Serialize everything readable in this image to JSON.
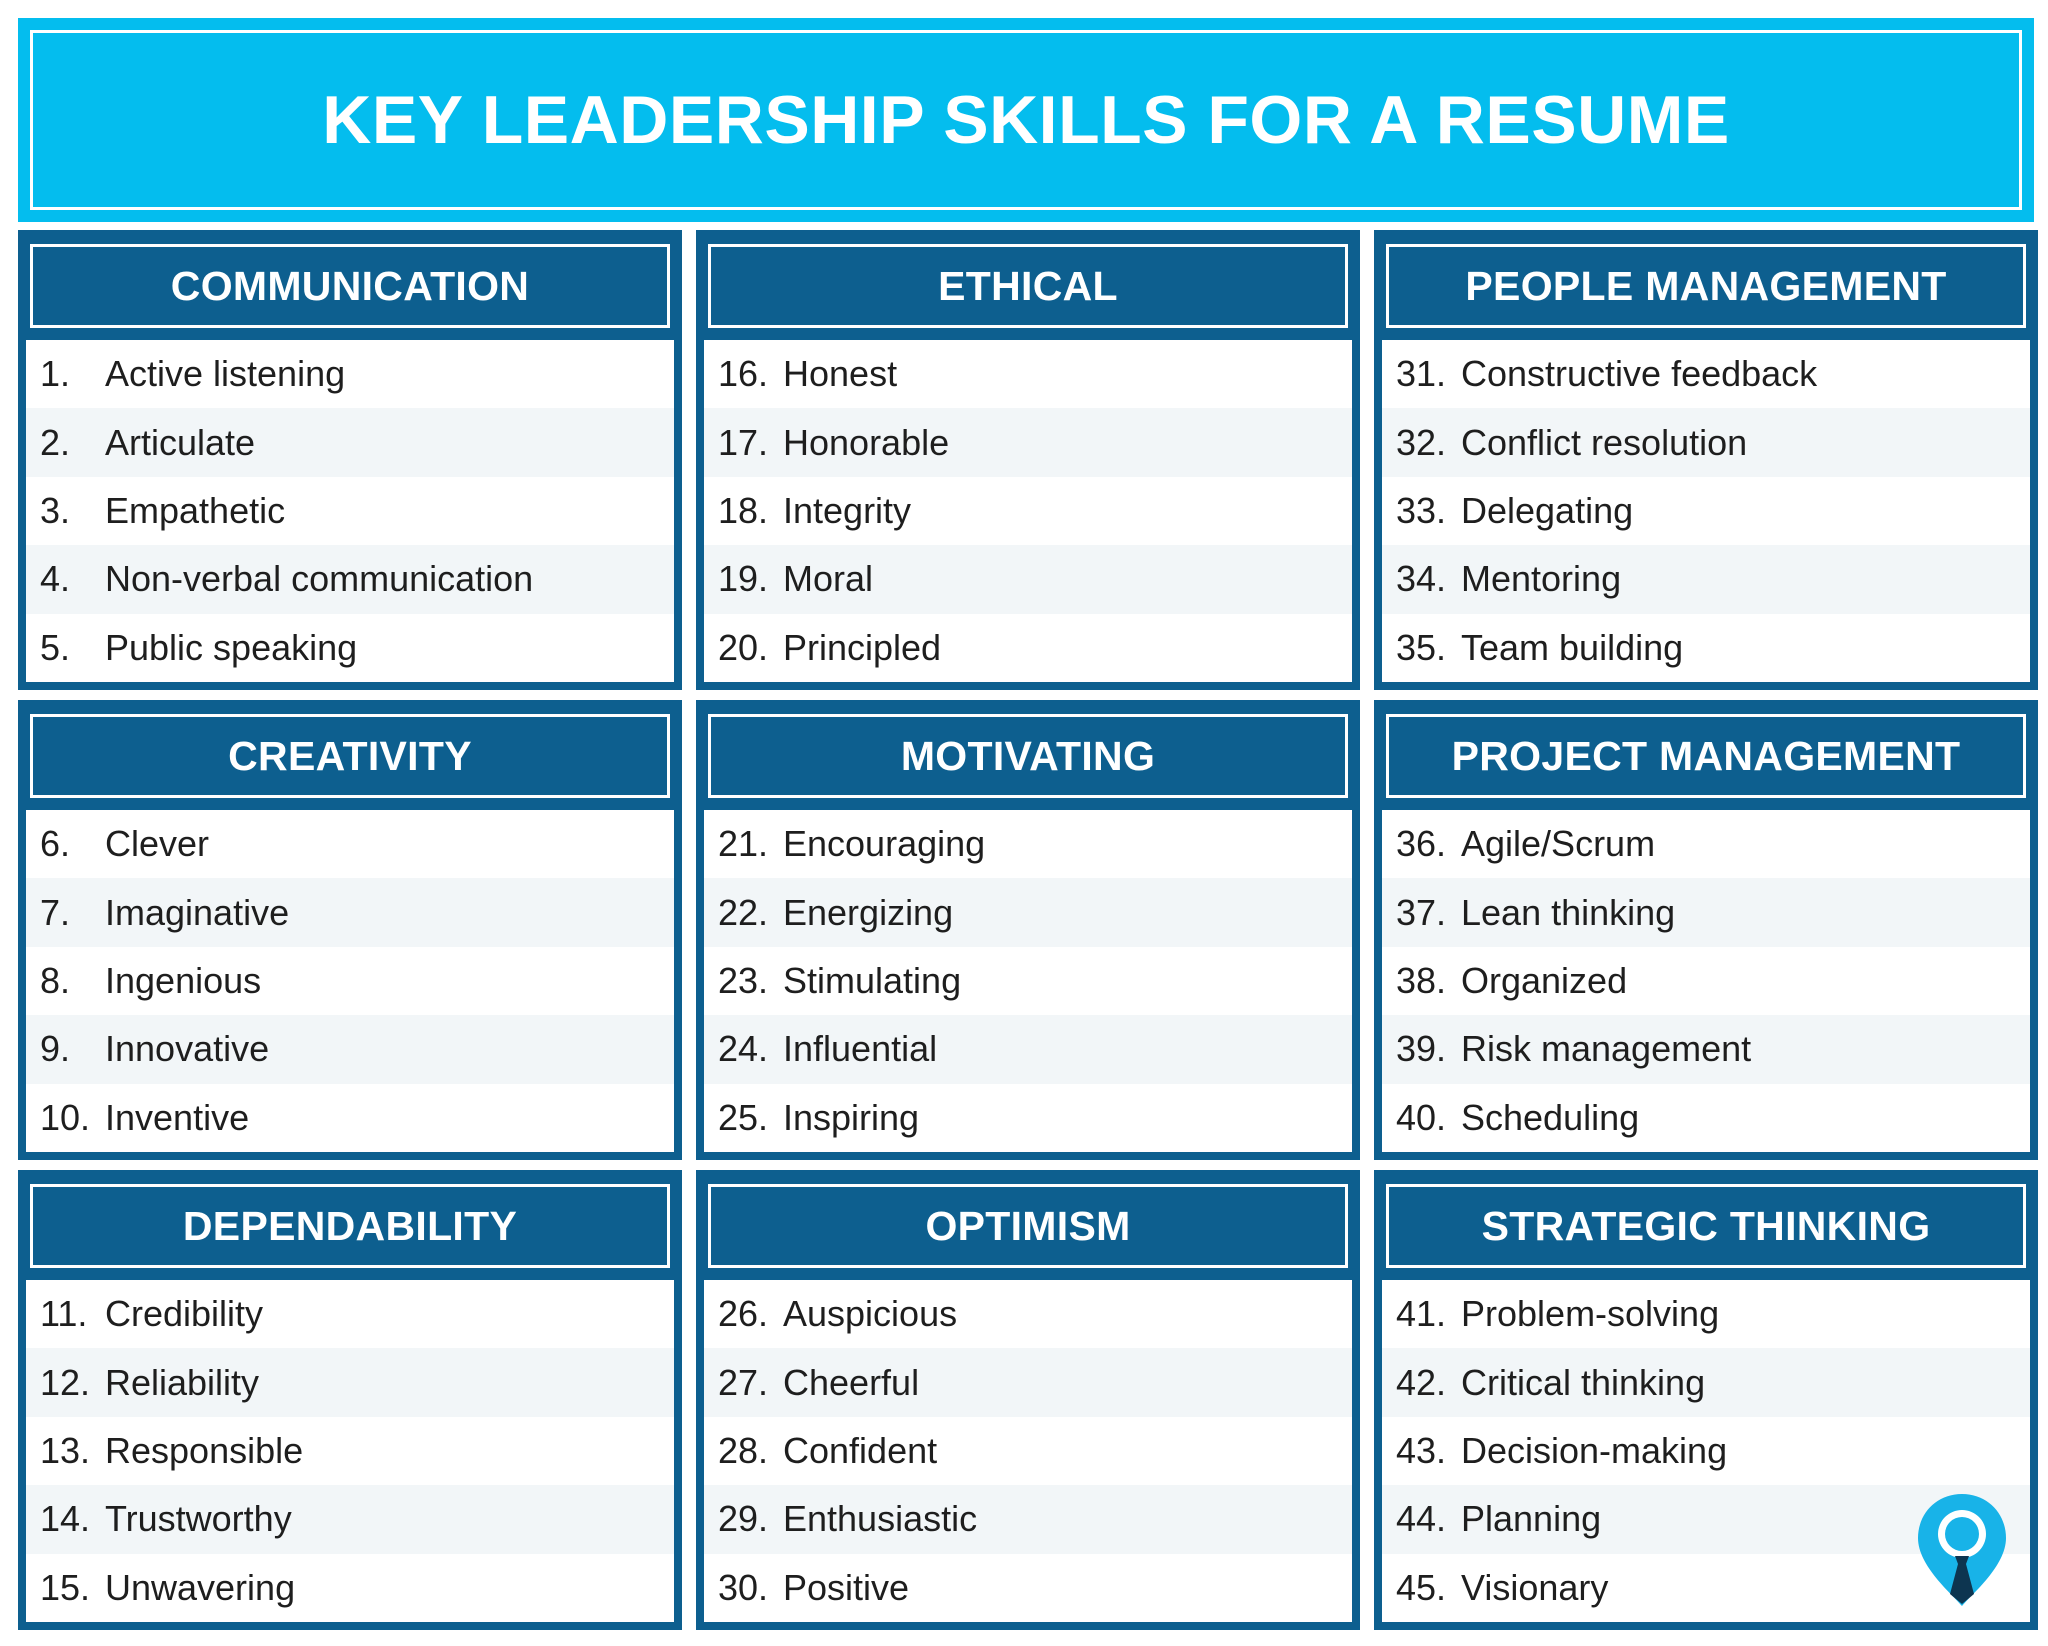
{
  "title": "KEY LEADERSHIP SKILLS FOR A RESUME",
  "colors": {
    "title_band": "#04bdee",
    "card": "#0d5f8f",
    "row_alt": "#f2f6f8"
  },
  "logo_icon": "location-pin-tie-icon",
  "categories": [
    {
      "name": "COMMUNICATION",
      "items": [
        {
          "num": "1.",
          "label": "Active listening"
        },
        {
          "num": "2.",
          "label": "Articulate"
        },
        {
          "num": "3.",
          "label": "Empathetic"
        },
        {
          "num": "4.",
          "label": "Non-verbal communication"
        },
        {
          "num": "5.",
          "label": "Public speaking"
        }
      ]
    },
    {
      "name": "ETHICAL",
      "items": [
        {
          "num": "16.",
          "label": "Honest"
        },
        {
          "num": "17.",
          "label": "Honorable"
        },
        {
          "num": "18.",
          "label": "Integrity"
        },
        {
          "num": "19.",
          "label": "Moral"
        },
        {
          "num": "20.",
          "label": "Principled"
        }
      ]
    },
    {
      "name": "PEOPLE MANAGEMENT",
      "items": [
        {
          "num": "31.",
          "label": "Constructive feedback"
        },
        {
          "num": "32.",
          "label": "Conflict resolution"
        },
        {
          "num": "33.",
          "label": "Delegating"
        },
        {
          "num": "34.",
          "label": "Mentoring"
        },
        {
          "num": "35.",
          "label": "Team building"
        }
      ]
    },
    {
      "name": "CREATIVITY",
      "items": [
        {
          "num": "6.",
          "label": "Clever"
        },
        {
          "num": "7.",
          "label": "Imaginative"
        },
        {
          "num": "8.",
          "label": "Ingenious"
        },
        {
          "num": "9.",
          "label": "Innovative"
        },
        {
          "num": "10.",
          "label": "Inventive"
        }
      ]
    },
    {
      "name": "MOTIVATING",
      "items": [
        {
          "num": "21.",
          "label": "Encouraging"
        },
        {
          "num": "22.",
          "label": "Energizing"
        },
        {
          "num": "23.",
          "label": "Stimulating"
        },
        {
          "num": "24.",
          "label": "Influential"
        },
        {
          "num": "25.",
          "label": "Inspiring"
        }
      ]
    },
    {
      "name": "PROJECT MANAGEMENT",
      "items": [
        {
          "num": "36.",
          "label": "Agile/Scrum"
        },
        {
          "num": "37.",
          "label": "Lean thinking"
        },
        {
          "num": "38.",
          "label": "Organized"
        },
        {
          "num": "39.",
          "label": "Risk management"
        },
        {
          "num": "40.",
          "label": "Scheduling"
        }
      ]
    },
    {
      "name": "DEPENDABILITY",
      "items": [
        {
          "num": "11.",
          "label": "Credibility"
        },
        {
          "num": "12.",
          "label": "Reliability"
        },
        {
          "num": "13.",
          "label": "Responsible"
        },
        {
          "num": "14.",
          "label": "Trustworthy"
        },
        {
          "num": "15.",
          "label": "Unwavering"
        }
      ]
    },
    {
      "name": "OPTIMISM",
      "items": [
        {
          "num": "26.",
          "label": "Auspicious"
        },
        {
          "num": "27.",
          "label": "Cheerful"
        },
        {
          "num": "28.",
          "label": "Confident"
        },
        {
          "num": "29.",
          "label": "Enthusiastic"
        },
        {
          "num": "30.",
          "label": "Positive"
        }
      ]
    },
    {
      "name": "STRATEGIC THINKING",
      "items": [
        {
          "num": "41.",
          "label": "Problem-solving"
        },
        {
          "num": "42.",
          "label": "Critical thinking"
        },
        {
          "num": "43.",
          "label": "Decision-making"
        },
        {
          "num": "44.",
          "label": "Planning"
        },
        {
          "num": "45.",
          "label": "Visionary"
        }
      ]
    }
  ]
}
